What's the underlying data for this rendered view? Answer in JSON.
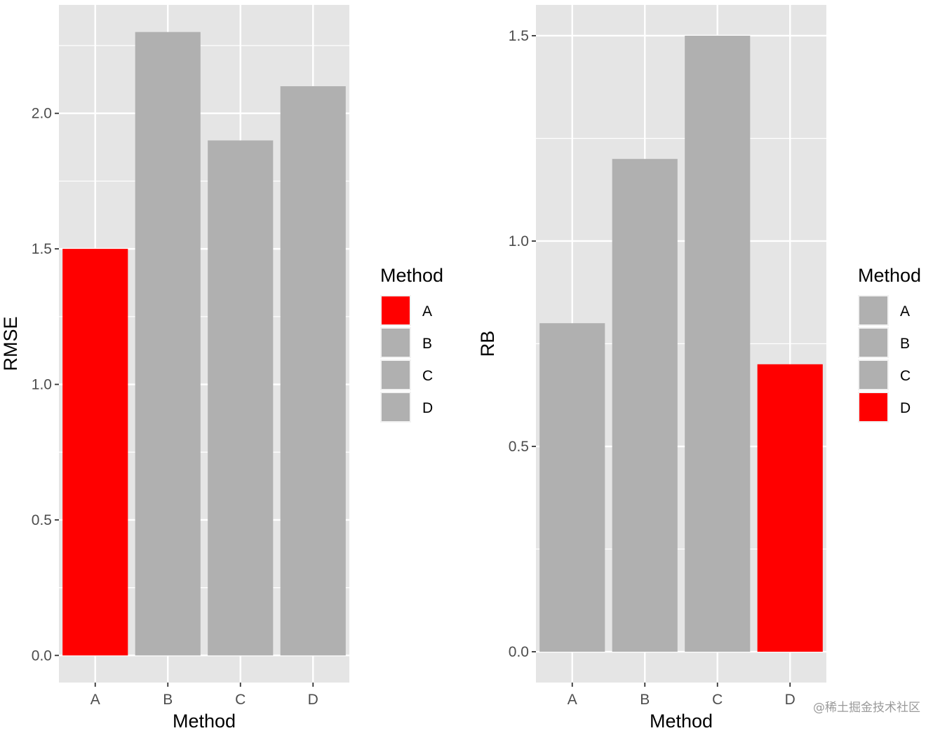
{
  "chart_data": [
    {
      "type": "bar",
      "categories": [
        "A",
        "B",
        "C",
        "D"
      ],
      "values": [
        1.5,
        2.3,
        1.9,
        2.1
      ],
      "xlabel": "Method",
      "ylabel": "RMSE",
      "ylim": [
        -0.1,
        2.4
      ],
      "yticks": [
        0.0,
        0.5,
        1.0,
        1.5,
        2.0
      ],
      "ytick_labels": [
        "0.0",
        "0.5",
        "1.0",
        "1.5",
        "2.0"
      ],
      "highlight_category": "A",
      "grid": true,
      "legend": {
        "title": "Method",
        "position": "right",
        "items": [
          {
            "label": "A",
            "color": "#FF0000"
          },
          {
            "label": "B",
            "color": "#B0B0B0"
          },
          {
            "label": "C",
            "color": "#B0B0B0"
          },
          {
            "label": "D",
            "color": "#B0B0B0"
          }
        ]
      },
      "colors": [
        "#FF0000",
        "#B0B0B0",
        "#B0B0B0",
        "#B0B0B0"
      ]
    },
    {
      "type": "bar",
      "categories": [
        "A",
        "B",
        "C",
        "D"
      ],
      "values": [
        0.8,
        1.2,
        1.5,
        0.7
      ],
      "xlabel": "Method",
      "ylabel": "RB",
      "ylim": [
        -0.075,
        1.575
      ],
      "yticks": [
        0.0,
        0.5,
        1.0,
        1.5
      ],
      "ytick_labels": [
        "0.0",
        "0.5",
        "1.0",
        "1.5"
      ],
      "highlight_category": "D",
      "grid": true,
      "legend": {
        "title": "Method",
        "position": "right",
        "items": [
          {
            "label": "A",
            "color": "#B0B0B0"
          },
          {
            "label": "B",
            "color": "#B0B0B0"
          },
          {
            "label": "C",
            "color": "#B0B0B0"
          },
          {
            "label": "D",
            "color": "#FF0000"
          }
        ]
      },
      "colors": [
        "#B0B0B0",
        "#B0B0B0",
        "#B0B0B0",
        "#FF0000"
      ]
    }
  ],
  "theme": {
    "panel_background": "#E5E5E5",
    "grid_color": "#FFFFFF",
    "bar_default": "#B0B0B0",
    "bar_highlight": "#FF0000"
  },
  "watermark": "@稀土掘金技术社区"
}
